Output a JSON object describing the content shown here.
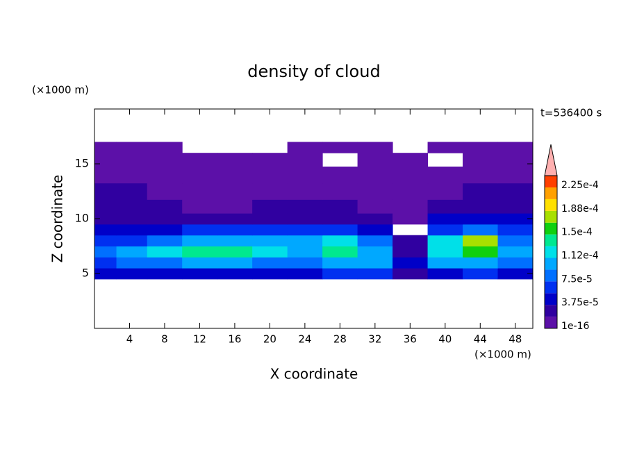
{
  "chart_data": {
    "type": "contour",
    "title": "density of cloud",
    "time_label": "t=536400 s",
    "xlabel": "X coordinate",
    "ylabel": "Z coordinate",
    "x_unit": "(×1000 m)",
    "y_unit": "(×1000 m)",
    "xlim": [
      0,
      50
    ],
    "ylim": [
      0,
      20
    ],
    "xticks": [
      4,
      8,
      12,
      16,
      20,
      24,
      28,
      32,
      36,
      40,
      44,
      48
    ],
    "yticks": [
      5,
      10,
      15
    ],
    "x": [
      1,
      4,
      8,
      12,
      16,
      20,
      24,
      28,
      32,
      36,
      40,
      44,
      48
    ],
    "z": [
      5,
      6,
      7,
      8,
      9,
      10,
      11,
      12.5,
      14,
      15.5,
      16.5
    ],
    "values": [
      [
        4e-05,
        5e-05,
        5e-05,
        5e-05,
        5e-05,
        5e-05,
        5e-05,
        6e-05,
        6e-05,
        3e-05,
        5e-05,
        6e-05,
        4e-05
      ],
      [
        7e-05,
        8e-05,
        9e-05,
        0.0001,
        0.0001,
        9e-05,
        9e-05,
        0.00011,
        0.0001,
        5e-05,
        0.0001,
        0.00011,
        8e-05
      ],
      [
        9e-05,
        0.0001,
        0.00012,
        0.00014,
        0.00014,
        0.00012,
        0.00011,
        0.00014,
        0.00011,
        3e-05,
        0.00013,
        0.00016,
        0.0001
      ],
      [
        6e-05,
        7e-05,
        9e-05,
        0.00011,
        0.00011,
        0.0001,
        0.0001,
        0.00013,
        8e-05,
        2e-05,
        0.00012,
        0.00017,
        9e-05
      ],
      [
        4e-05,
        4e-05,
        5e-05,
        6e-05,
        6e-05,
        6e-05,
        6e-05,
        7e-05,
        5e-05,
        null,
        7e-05,
        9e-05,
        6e-05
      ],
      [
        3e-05,
        3e-05,
        3e-05,
        3e-05,
        3e-05,
        3e-05,
        3e-05,
        3e-05,
        2e-05,
        1e-05,
        4e-05,
        5e-05,
        4e-05
      ],
      [
        2e-05,
        2e-05,
        2e-05,
        1e-05,
        1e-05,
        2e-05,
        2e-05,
        2e-05,
        1e-05,
        1e-05,
        2e-05,
        3e-05,
        3e-05
      ],
      [
        2e-05,
        2e-05,
        1e-05,
        1e-05,
        1e-05,
        1e-05,
        1e-05,
        1e-05,
        1e-05,
        1e-05,
        1e-05,
        2e-05,
        2e-05
      ],
      [
        1e-05,
        1e-05,
        1e-05,
        1e-05,
        1e-05,
        1e-05,
        1e-05,
        1e-05,
        1e-05,
        1e-05,
        1e-05,
        1e-05,
        1e-05
      ],
      [
        5e-06,
        5e-06,
        5e-06,
        5e-06,
        5e-06,
        5e-06,
        5e-06,
        null,
        5e-06,
        5e-06,
        null,
        5e-06,
        5e-06
      ],
      [
        5e-06,
        5e-06,
        5e-06,
        null,
        null,
        null,
        5e-06,
        5e-06,
        5e-06,
        null,
        5e-06,
        5e-06,
        5e-06
      ]
    ],
    "levels": [
      1e-16,
      1.875e-05,
      3.75e-05,
      5.625e-05,
      7.5e-05,
      9.375e-05,
      0.0001125,
      0.00013125,
      0.00015,
      0.00016875,
      0.0001875,
      0.00020625,
      0.000225
    ],
    "colors": [
      "#5c10a8",
      "#3000a0",
      "#0000c8",
      "#0030f0",
      "#0070ff",
      "#00a8ff",
      "#00e0e8",
      "#00e890",
      "#10d010",
      "#a8e000",
      "#ffe000",
      "#ffa000",
      "#ff4000"
    ],
    "extend_color": "#ffb0b0",
    "colorbar_ticks": [
      {
        "value": 1e-16,
        "label": "1e-16"
      },
      {
        "value": 3.75e-05,
        "label": "3.75e-5"
      },
      {
        "value": 7.5e-05,
        "label": "7.5e-5"
      },
      {
        "value": 0.0001125,
        "label": "1.12e-4"
      },
      {
        "value": 0.00015,
        "label": "1.5e-4"
      },
      {
        "value": 0.0001875,
        "label": "1.88e-4"
      },
      {
        "value": 0.000225,
        "label": "2.25e-4"
      }
    ]
  }
}
